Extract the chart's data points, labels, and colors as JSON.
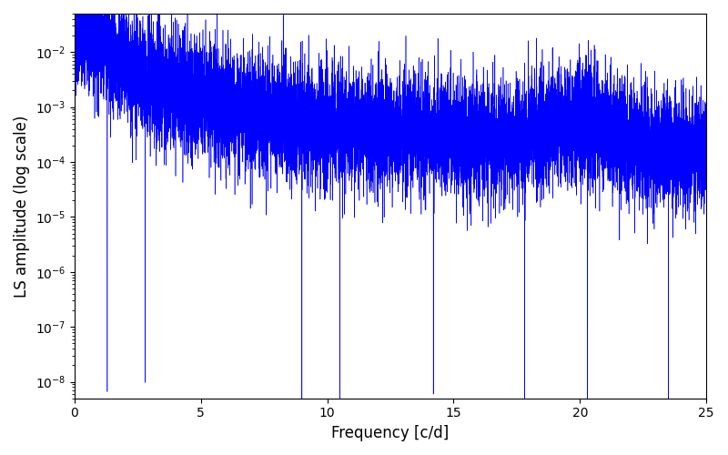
{
  "xlabel": "Frequency [c/d]",
  "ylabel": "LS amplitude (log scale)",
  "xlim": [
    0,
    25
  ],
  "ylim": [
    5e-09,
    0.05
  ],
  "line_color": "#0000ff",
  "background_color": "#ffffff",
  "figsize": [
    8.0,
    5.0
  ],
  "dpi": 100,
  "freq_max": 25.0,
  "n_points": 12000,
  "seed": 7
}
